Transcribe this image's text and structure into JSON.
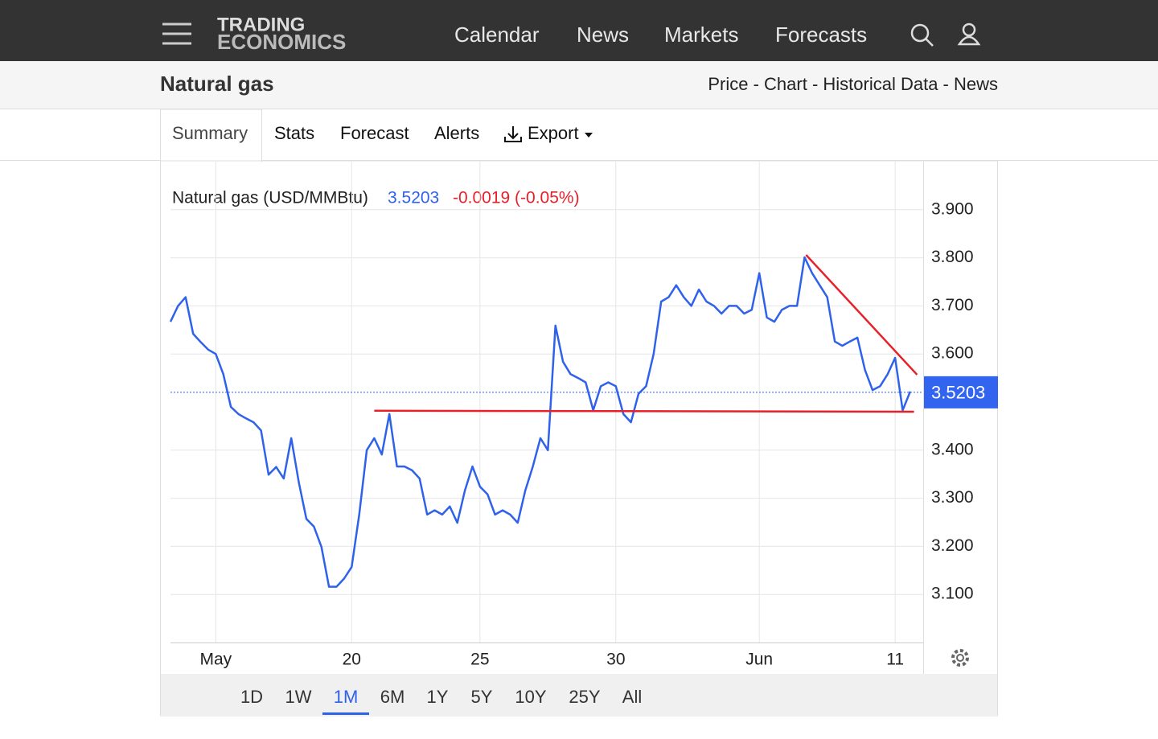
{
  "header": {
    "logo": [
      "TRADING",
      "ECONOMICS"
    ],
    "nav": [
      "Calendar",
      "News",
      "Markets",
      "Forecasts"
    ]
  },
  "subheader": {
    "title": "Natural gas",
    "links": "Price - Chart - Historical Data - News"
  },
  "tabs": [
    "Summary",
    "Stats",
    "Forecast",
    "Alerts",
    "Export"
  ],
  "chart_data": {
    "type": "line",
    "title": "Natural gas (USD/MMBtu)",
    "last": 3.5203,
    "change": "-0.0019 (-0.05%)",
    "color": "#2f62ea",
    "values": [
      3.667,
      3.7,
      3.718,
      3.642,
      3.625,
      3.609,
      3.6,
      3.558,
      3.49,
      3.475,
      3.466,
      3.458,
      3.441,
      3.349,
      3.365,
      3.341,
      3.425,
      3.333,
      3.257,
      3.241,
      3.199,
      3.116,
      3.116,
      3.133,
      3.157,
      3.266,
      3.4,
      3.425,
      3.391,
      3.475,
      3.366,
      3.366,
      3.358,
      3.341,
      3.266,
      3.275,
      3.266,
      3.283,
      3.249,
      3.316,
      3.366,
      3.324,
      3.308,
      3.266,
      3.275,
      3.266,
      3.249,
      3.316,
      3.366,
      3.425,
      3.4,
      3.659,
      3.584,
      3.558,
      3.55,
      3.541,
      3.483,
      3.533,
      3.541,
      3.533,
      3.475,
      3.458,
      3.517,
      3.533,
      3.6,
      3.709,
      3.718,
      3.743,
      3.718,
      3.7,
      3.734,
      3.709,
      3.7,
      3.684,
      3.7,
      3.7,
      3.684,
      3.692,
      3.768,
      3.676,
      3.667,
      3.692,
      3.7,
      3.7,
      3.801,
      3.768,
      3.743,
      3.718,
      3.626,
      3.617,
      3.626,
      3.634,
      3.567,
      3.525,
      3.533,
      3.558,
      3.592,
      3.483,
      3.522
    ],
    "xlim": [
      0,
      99.5
    ],
    "xticks": [
      {
        "value": 6,
        "label": "May"
      },
      {
        "value": 24,
        "label": "20"
      },
      {
        "value": 41,
        "label": "25"
      },
      {
        "value": 59,
        "label": "30"
      },
      {
        "value": 78,
        "label": "Jun"
      },
      {
        "value": 96,
        "label": "11"
      }
    ],
    "ylim": [
      3.0,
      4.0
    ],
    "yticks": [
      {
        "value": 3.1,
        "label": "3.100"
      },
      {
        "value": 3.2,
        "label": "3.200"
      },
      {
        "value": 3.3,
        "label": "3.300"
      },
      {
        "value": 3.4,
        "label": "3.400"
      },
      {
        "value": 3.6,
        "label": "3.600"
      },
      {
        "value": 3.7,
        "label": "3.700"
      },
      {
        "value": 3.8,
        "label": "3.800"
      },
      {
        "value": 3.9,
        "label": "3.900"
      }
    ],
    "grid": true,
    "trendlines": [
      {
        "color": "#e8202a",
        "x": [
          27,
          98.5
        ],
        "y": [
          3.482,
          3.48
        ]
      },
      {
        "color": "#e8202a",
        "x": [
          84.2,
          98.9
        ],
        "y": [
          3.806,
          3.557
        ]
      }
    ]
  },
  "ranges": [
    "1D",
    "1W",
    "1M",
    "6M",
    "1Y",
    "5Y",
    "10Y",
    "25Y",
    "All"
  ],
  "active_range": 2
}
